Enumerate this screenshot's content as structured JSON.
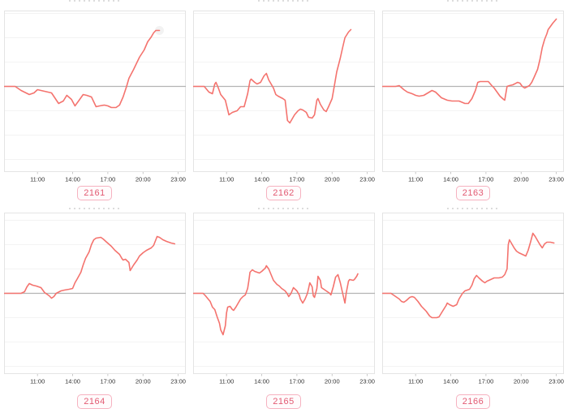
{
  "colors": {
    "line": "#f4736e",
    "zero_line": "#b3b3b3",
    "grid_line": "#f3f3f3",
    "plot_border": "#e4e4e4",
    "tick_label": "#333333",
    "tick_mark": "#bbbbbb",
    "tag_text": "#e25a72",
    "tag_border": "#f6b2c0",
    "end_marker": "rgba(0,0,0,0.05)"
  },
  "chart_meta": {
    "xlim": [
      8.15,
      23.65
    ],
    "xticks": [
      "11:00",
      "14:00",
      "17:00",
      "20:00",
      "23:00"
    ],
    "xtick_hours": [
      11,
      14,
      17,
      20,
      23
    ],
    "baseline_value": 0,
    "grid": "horizontal-faint"
  },
  "chart_data": [
    {
      "id": "2161",
      "type": "line",
      "ylim": [
        -105.5,
        93.5
      ],
      "end_marker": true,
      "points": [
        [
          8.2,
          0
        ],
        [
          9.1,
          0
        ],
        [
          9.6,
          -5
        ],
        [
          10.3,
          -10
        ],
        [
          10.7,
          -8
        ],
        [
          11.0,
          -4
        ],
        [
          11.3,
          -5
        ],
        [
          11.9,
          -7
        ],
        [
          12.2,
          -8
        ],
        [
          12.8,
          -21
        ],
        [
          13.2,
          -18
        ],
        [
          13.5,
          -11
        ],
        [
          13.9,
          -16
        ],
        [
          14.2,
          -24
        ],
        [
          14.5,
          -18
        ],
        [
          14.9,
          -10
        ],
        [
          15.2,
          -11
        ],
        [
          15.6,
          -13
        ],
        [
          16.0,
          -25
        ],
        [
          16.3,
          -24
        ],
        [
          16.7,
          -23
        ],
        [
          17.0,
          -24
        ],
        [
          17.3,
          -26
        ],
        [
          17.7,
          -26
        ],
        [
          18.0,
          -23
        ],
        [
          18.3,
          -13
        ],
        [
          18.6,
          0
        ],
        [
          18.8,
          10
        ],
        [
          19.2,
          21
        ],
        [
          19.5,
          30
        ],
        [
          19.7,
          36
        ],
        [
          20.1,
          45
        ],
        [
          20.4,
          55
        ],
        [
          20.7,
          61
        ],
        [
          20.9,
          66
        ],
        [
          21.1,
          69
        ],
        [
          21.4,
          69
        ]
      ]
    },
    {
      "id": "2162",
      "type": "line",
      "ylim": [
        -105.5,
        93.5
      ],
      "end_marker": false,
      "points": [
        [
          8.2,
          0
        ],
        [
          9.1,
          0
        ],
        [
          9.5,
          -7
        ],
        [
          9.8,
          -9
        ],
        [
          10.0,
          3
        ],
        [
          10.1,
          5
        ],
        [
          10.3,
          -2
        ],
        [
          10.5,
          -10
        ],
        [
          10.9,
          -17
        ],
        [
          11.2,
          -35
        ],
        [
          11.5,
          -32
        ],
        [
          11.9,
          -30
        ],
        [
          12.2,
          -25
        ],
        [
          12.5,
          -25
        ],
        [
          12.8,
          -9
        ],
        [
          13.0,
          7
        ],
        [
          13.1,
          9
        ],
        [
          13.4,
          5
        ],
        [
          13.6,
          3
        ],
        [
          13.9,
          5
        ],
        [
          14.2,
          13
        ],
        [
          14.4,
          16
        ],
        [
          14.6,
          8
        ],
        [
          15.0,
          -2
        ],
        [
          15.2,
          -10
        ],
        [
          15.4,
          -12
        ],
        [
          15.8,
          -15
        ],
        [
          16.0,
          -17
        ],
        [
          16.2,
          -42
        ],
        [
          16.4,
          -45
        ],
        [
          16.6,
          -40
        ],
        [
          16.8,
          -35
        ],
        [
          17.1,
          -30
        ],
        [
          17.3,
          -28
        ],
        [
          17.5,
          -29
        ],
        [
          17.8,
          -32
        ],
        [
          18.0,
          -38
        ],
        [
          18.3,
          -39
        ],
        [
          18.5,
          -35
        ],
        [
          18.7,
          -17
        ],
        [
          18.8,
          -15
        ],
        [
          19.0,
          -22
        ],
        [
          19.3,
          -29
        ],
        [
          19.5,
          -31
        ],
        [
          19.7,
          -25
        ],
        [
          20.0,
          -15
        ],
        [
          20.2,
          1
        ],
        [
          20.4,
          18
        ],
        [
          20.7,
          35
        ],
        [
          20.9,
          48
        ],
        [
          21.1,
          60
        ],
        [
          21.4,
          67
        ],
        [
          21.6,
          70
        ]
      ]
    },
    {
      "id": "2163",
      "type": "line",
      "ylim": [
        -105.5,
        93.5
      ],
      "end_marker": false,
      "points": [
        [
          8.2,
          0
        ],
        [
          9.3,
          0
        ],
        [
          9.6,
          1
        ],
        [
          10.0,
          -4
        ],
        [
          10.3,
          -7
        ],
        [
          10.7,
          -9
        ],
        [
          11.0,
          -11
        ],
        [
          11.3,
          -12
        ],
        [
          11.7,
          -11
        ],
        [
          12.4,
          -5
        ],
        [
          12.7,
          -7
        ],
        [
          13.2,
          -14
        ],
        [
          13.7,
          -17
        ],
        [
          14.1,
          -18
        ],
        [
          14.4,
          -18
        ],
        [
          14.7,
          -18
        ],
        [
          15.2,
          -21
        ],
        [
          15.5,
          -21
        ],
        [
          15.8,
          -15
        ],
        [
          16.1,
          -5
        ],
        [
          16.3,
          5
        ],
        [
          16.5,
          6
        ],
        [
          16.9,
          6
        ],
        [
          17.2,
          6
        ],
        [
          17.5,
          1
        ],
        [
          17.7,
          -2
        ],
        [
          18.2,
          -12
        ],
        [
          18.5,
          -16
        ],
        [
          18.6,
          -17
        ],
        [
          18.8,
          0
        ],
        [
          19.0,
          1
        ],
        [
          19.3,
          2
        ],
        [
          19.7,
          5
        ],
        [
          19.9,
          4
        ],
        [
          20.1,
          0
        ],
        [
          20.3,
          -2
        ],
        [
          20.7,
          1
        ],
        [
          20.9,
          5
        ],
        [
          21.1,
          11
        ],
        [
          21.4,
          21
        ],
        [
          21.6,
          33
        ],
        [
          21.8,
          48
        ],
        [
          22.0,
          58
        ],
        [
          22.2,
          65
        ],
        [
          22.3,
          70
        ],
        [
          22.7,
          78
        ],
        [
          23.0,
          83
        ]
      ]
    },
    {
      "id": "2164",
      "type": "line",
      "ylim": [
        -99.5,
        99.5
      ],
      "end_marker": false,
      "points": [
        [
          8.2,
          0
        ],
        [
          9.6,
          0
        ],
        [
          9.9,
          2
        ],
        [
          10.1,
          8
        ],
        [
          10.3,
          12
        ],
        [
          10.6,
          10
        ],
        [
          10.9,
          9
        ],
        [
          11.3,
          7
        ],
        [
          11.6,
          1
        ],
        [
          12.0,
          -3
        ],
        [
          12.2,
          -6
        ],
        [
          12.4,
          -4
        ],
        [
          12.6,
          0
        ],
        [
          13.0,
          3
        ],
        [
          13.3,
          4
        ],
        [
          13.7,
          5
        ],
        [
          14.0,
          6
        ],
        [
          14.2,
          13
        ],
        [
          14.4,
          18
        ],
        [
          14.7,
          26
        ],
        [
          14.9,
          35
        ],
        [
          15.1,
          43
        ],
        [
          15.4,
          51
        ],
        [
          15.6,
          60
        ],
        [
          15.8,
          66
        ],
        [
          16.0,
          68
        ],
        [
          16.4,
          69
        ],
        [
          16.6,
          67
        ],
        [
          16.9,
          63
        ],
        [
          17.3,
          58
        ],
        [
          17.6,
          53
        ],
        [
          18.0,
          48
        ],
        [
          18.2,
          43
        ],
        [
          18.3,
          41
        ],
        [
          18.5,
          42
        ],
        [
          18.8,
          38
        ],
        [
          18.9,
          28
        ],
        [
          19.2,
          35
        ],
        [
          19.5,
          41
        ],
        [
          19.7,
          46
        ],
        [
          20.0,
          50
        ],
        [
          20.3,
          53
        ],
        [
          20.7,
          56
        ],
        [
          20.9,
          59
        ],
        [
          21.2,
          70
        ],
        [
          21.4,
          69
        ],
        [
          21.7,
          66
        ],
        [
          22.0,
          64
        ],
        [
          22.4,
          62
        ],
        [
          22.7,
          61
        ]
      ]
    },
    {
      "id": "2165",
      "type": "line",
      "ylim": [
        -99.5,
        99.5
      ],
      "end_marker": false,
      "points": [
        [
          8.2,
          0
        ],
        [
          9.0,
          0
        ],
        [
          9.2,
          -3
        ],
        [
          9.6,
          -10
        ],
        [
          9.8,
          -17
        ],
        [
          10.0,
          -20
        ],
        [
          10.2,
          -29
        ],
        [
          10.4,
          -37
        ],
        [
          10.5,
          -45
        ],
        [
          10.7,
          -51
        ],
        [
          10.9,
          -40
        ],
        [
          11.0,
          -24
        ],
        [
          11.1,
          -17
        ],
        [
          11.3,
          -16
        ],
        [
          11.5,
          -20
        ],
        [
          11.6,
          -21
        ],
        [
          11.8,
          -17
        ],
        [
          12.0,
          -12
        ],
        [
          12.2,
          -7
        ],
        [
          12.4,
          -4
        ],
        [
          12.6,
          -2
        ],
        [
          12.8,
          6
        ],
        [
          12.9,
          15
        ],
        [
          13.0,
          26
        ],
        [
          13.2,
          29
        ],
        [
          13.4,
          27
        ],
        [
          13.6,
          26
        ],
        [
          13.8,
          25
        ],
        [
          14.0,
          27
        ],
        [
          14.3,
          31
        ],
        [
          14.4,
          34
        ],
        [
          14.6,
          30
        ],
        [
          14.8,
          23
        ],
        [
          15.0,
          16
        ],
        [
          15.3,
          11
        ],
        [
          15.5,
          9
        ],
        [
          15.7,
          6
        ],
        [
          16.0,
          3
        ],
        [
          16.2,
          -1
        ],
        [
          16.3,
          -4
        ],
        [
          16.5,
          0
        ],
        [
          16.7,
          7
        ],
        [
          17.0,
          3
        ],
        [
          17.2,
          -2
        ],
        [
          17.3,
          -7
        ],
        [
          17.5,
          -12
        ],
        [
          17.7,
          -7
        ],
        [
          17.9,
          0
        ],
        [
          18.0,
          6
        ],
        [
          18.1,
          13
        ],
        [
          18.3,
          8
        ],
        [
          18.4,
          -3
        ],
        [
          18.5,
          -5
        ],
        [
          18.7,
          6
        ],
        [
          18.8,
          21
        ],
        [
          19.0,
          16
        ],
        [
          19.1,
          7
        ],
        [
          19.3,
          5
        ],
        [
          19.5,
          3
        ],
        [
          19.8,
          0
        ],
        [
          19.9,
          -2
        ],
        [
          20.1,
          8
        ],
        [
          20.3,
          20
        ],
        [
          20.5,
          23
        ],
        [
          20.7,
          13
        ],
        [
          20.9,
          0
        ],
        [
          21.1,
          -12
        ],
        [
          21.2,
          0
        ],
        [
          21.4,
          15
        ],
        [
          21.5,
          17
        ],
        [
          21.8,
          16
        ],
        [
          21.9,
          17
        ],
        [
          22.1,
          21
        ],
        [
          22.2,
          24
        ]
      ]
    },
    {
      "id": "2166",
      "type": "line",
      "ylim": [
        -99.5,
        99.5
      ],
      "end_marker": false,
      "points": [
        [
          8.2,
          0
        ],
        [
          8.9,
          0
        ],
        [
          9.2,
          -3
        ],
        [
          9.4,
          -5
        ],
        [
          9.6,
          -7
        ],
        [
          9.8,
          -10
        ],
        [
          10.0,
          -11
        ],
        [
          10.2,
          -9
        ],
        [
          10.5,
          -5
        ],
        [
          10.7,
          -4
        ],
        [
          10.9,
          -5
        ],
        [
          11.2,
          -10
        ],
        [
          11.5,
          -16
        ],
        [
          11.9,
          -22
        ],
        [
          12.2,
          -28
        ],
        [
          12.4,
          -30
        ],
        [
          12.8,
          -30
        ],
        [
          13.0,
          -29
        ],
        [
          13.3,
          -22
        ],
        [
          13.6,
          -15
        ],
        [
          13.7,
          -12
        ],
        [
          13.9,
          -14
        ],
        [
          14.2,
          -16
        ],
        [
          14.5,
          -14
        ],
        [
          14.7,
          -7
        ],
        [
          15.0,
          0
        ],
        [
          15.2,
          3
        ],
        [
          15.4,
          4
        ],
        [
          15.6,
          5
        ],
        [
          15.8,
          10
        ],
        [
          16.0,
          18
        ],
        [
          16.2,
          22
        ],
        [
          16.4,
          19
        ],
        [
          16.7,
          15
        ],
        [
          16.9,
          13
        ],
        [
          17.1,
          15
        ],
        [
          17.4,
          17
        ],
        [
          17.7,
          19
        ],
        [
          18.1,
          19
        ],
        [
          18.4,
          20
        ],
        [
          18.6,
          23
        ],
        [
          18.8,
          30
        ],
        [
          18.9,
          60
        ],
        [
          19.0,
          66
        ],
        [
          19.2,
          61
        ],
        [
          19.4,
          56
        ],
        [
          19.6,
          52
        ],
        [
          19.8,
          50
        ],
        [
          20.1,
          48
        ],
        [
          20.4,
          46
        ],
        [
          20.6,
          53
        ],
        [
          20.8,
          63
        ],
        [
          21.0,
          74
        ],
        [
          21.2,
          70
        ],
        [
          21.4,
          65
        ],
        [
          21.6,
          60
        ],
        [
          21.8,
          56
        ],
        [
          22.0,
          61
        ],
        [
          22.2,
          63
        ],
        [
          22.5,
          63
        ],
        [
          22.8,
          62
        ]
      ]
    }
  ]
}
